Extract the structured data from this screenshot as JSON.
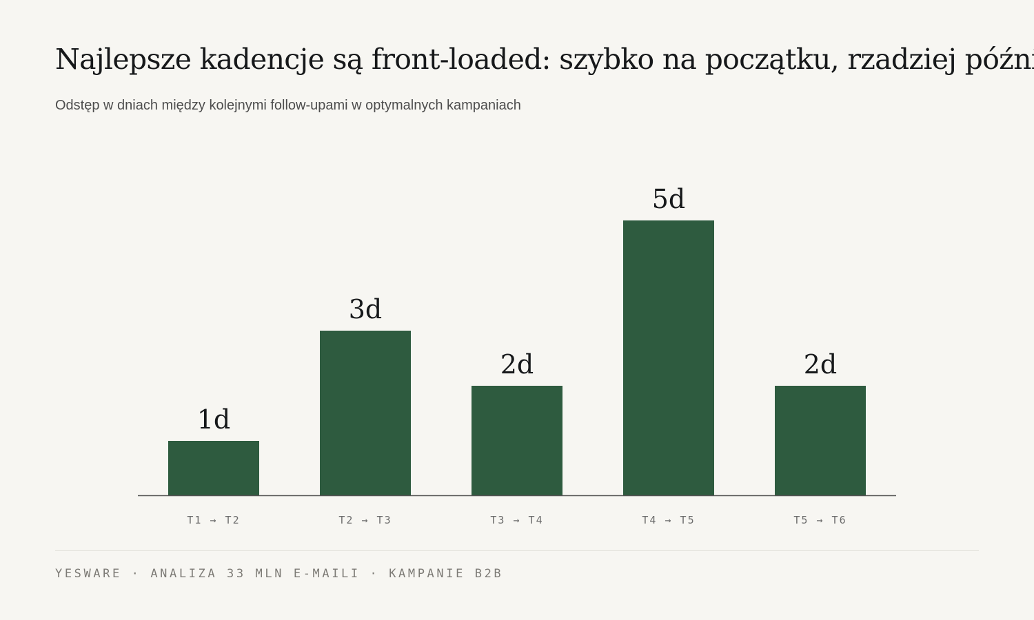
{
  "header": {
    "title": "Najlepsze kadencje są front-loaded: szybko na początku, rzadziej później",
    "subtitle": "Odstęp w dniach między kolejnymi follow-upami w optymalnych kampaniach"
  },
  "footer": {
    "source": "YESWARE · ANALIZA 33 MLN E-MAILI · KAMPANIE B2B"
  },
  "colors": {
    "bar": "#2e5b3f",
    "axis": "#555555",
    "value_label": "#16181a",
    "tick_label": "#6b6b6b"
  },
  "chart_data": {
    "type": "bar",
    "categories": [
      "T1 → T2",
      "T2 → T3",
      "T3 → T4",
      "T4 → T5",
      "T5 → T6"
    ],
    "values": [
      1,
      3,
      2,
      5,
      2
    ],
    "value_labels": [
      "1d",
      "3d",
      "2d",
      "5d",
      "2d"
    ],
    "title": "Najlepsze kadencje są front-loaded: szybko na początku, rzadziej później",
    "subtitle": "Odstęp w dniach między kolejnymi follow-upami w optymalnych kampaniach",
    "xlabel": "",
    "ylabel": "",
    "ylim": [
      0,
      5
    ],
    "grid": false,
    "legend": "none"
  }
}
